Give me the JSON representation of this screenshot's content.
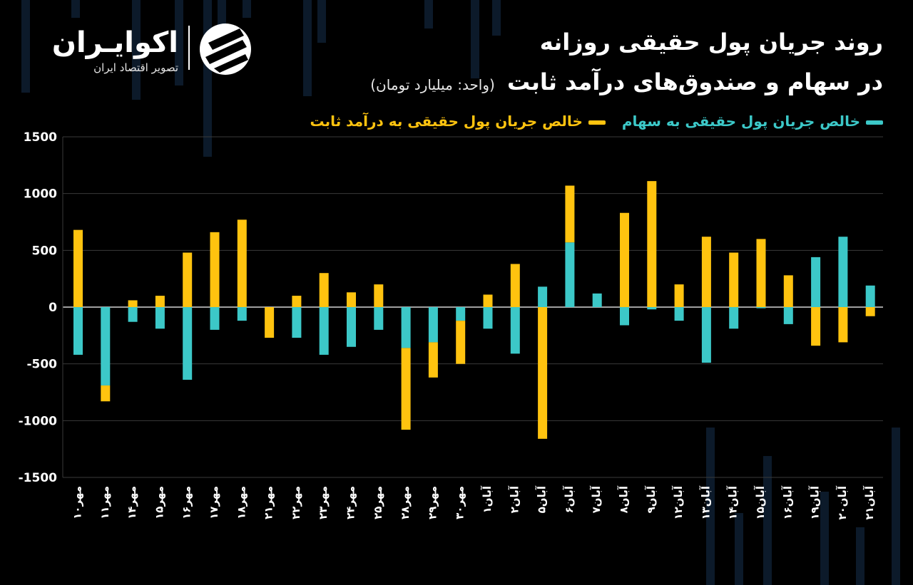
{
  "brand": {
    "name": "اکوایـران",
    "tagline": "تصویر اقتصاد ایران",
    "logo_icon": "ecoiran-logo-icon"
  },
  "title_line1": "روند جریان پول حقیقی روزانه",
  "title_line2": "در سهام و صندوق‌های درآمد ثابت",
  "unit": "(واحد: میلیارد تومان)",
  "colors": {
    "stocks": "#3cc8c8",
    "fixed_income": "#ffc30f",
    "background": "#000000"
  },
  "chart_data": {
    "type": "bar",
    "categories": [
      "مهر۱۰",
      "مهر۱۱",
      "مهر۱۴",
      "مهر۱۵",
      "مهر۱۶",
      "مهر۱۷",
      "مهر۱۸",
      "مهر۲۱",
      "مهر۲۲",
      "مهر۲۳",
      "مهر۲۴",
      "مهر۲۵",
      "مهر۲۸",
      "مهر۲۹",
      "مهر۳۰",
      "آبان۱",
      "آبان۲",
      "آبان۵",
      "آبان۶",
      "آبان۷",
      "آبان۸",
      "آبان۹",
      "آبان۱۲",
      "آبان۱۳",
      "آبان۱۴",
      "آبان۱۵",
      "آبان۱۶",
      "آبان۱۹",
      "آبان۲۰",
      "آبان۲۱"
    ],
    "series": [
      {
        "name": "خالص جریان پول حقیقی به سهام",
        "color": "#3cc8c8",
        "values": [
          -420,
          -690,
          -130,
          -190,
          -640,
          -200,
          -120,
          0,
          -270,
          -420,
          -350,
          -200,
          -360,
          -310,
          -120,
          -190,
          -410,
          180,
          570,
          120,
          -160,
          -20,
          -120,
          -490,
          -190,
          -10,
          -150,
          440,
          620,
          190
        ]
      },
      {
        "name": "خالص جریان پول حقیقی به درآمد ثابت",
        "color": "#ffc30f",
        "values": [
          680,
          -140,
          60,
          100,
          480,
          660,
          770,
          -270,
          100,
          300,
          130,
          200,
          -720,
          -310,
          -380,
          110,
          380,
          -1160,
          500,
          0,
          830,
          1110,
          200,
          620,
          480,
          600,
          280,
          -340,
          -310,
          -80
        ]
      }
    ],
    "stacked": true,
    "ylim": [
      -1500,
      1500
    ],
    "yticks": [
      "1500",
      "1000",
      "500",
      "0",
      "-500",
      "-1000",
      "-1500"
    ],
    "legend_position": "top-right",
    "grid": true
  }
}
